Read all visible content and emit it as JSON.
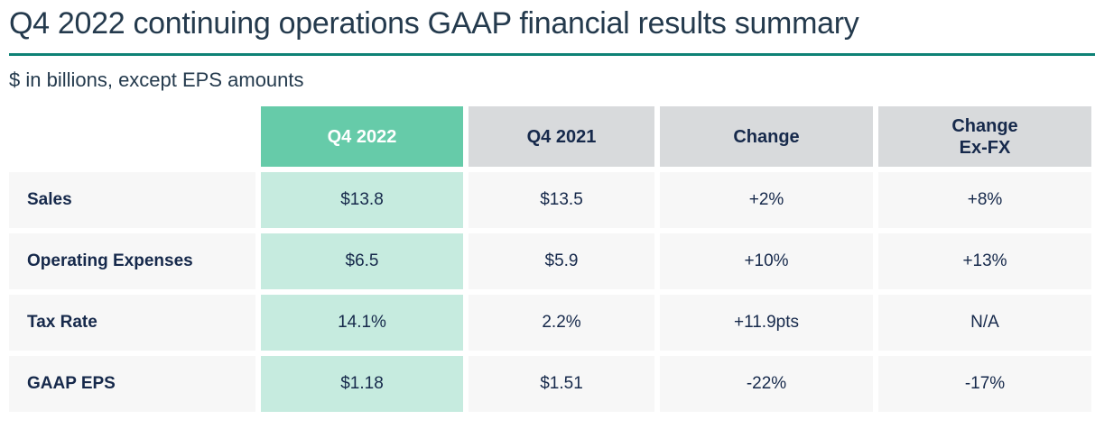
{
  "header": {
    "title": "Q4 2022 continuing operations GAAP financial results summary",
    "note": "$ in billions, except EPS amounts"
  },
  "chart_data": {
    "type": "table",
    "title": "Q4 2022 continuing operations GAAP financial results summary",
    "subtitle": "$ in billions, except EPS amounts",
    "columns": [
      "",
      "Q4 2022",
      "Q4 2021",
      "Change",
      "Change Ex-FX"
    ],
    "rows": [
      [
        "Sales",
        "$13.8",
        "$13.5",
        "+2%",
        "+8%"
      ],
      [
        "Operating Expenses",
        "$6.5",
        "$5.9",
        "+10%",
        "+13%"
      ],
      [
        "Tax Rate",
        "14.1%",
        "2.2%",
        "+11.9pts",
        "N/A"
      ],
      [
        "GAAP EPS",
        "$1.18",
        "$1.51",
        "-22%",
        "-17%"
      ]
    ],
    "highlighted_column": "Q4 2022",
    "layout": {
      "grid": "off",
      "header_row": true,
      "label_column_bold": true
    }
  },
  "table": {
    "columns": [
      {
        "id": "metric",
        "label": ""
      },
      {
        "id": "q4-2022",
        "label": "Q4 2022",
        "highlight": true
      },
      {
        "id": "q4-2021",
        "label": "Q4 2021"
      },
      {
        "id": "change",
        "label": "Change"
      },
      {
        "id": "change-ex-fx",
        "label": "Change\nEx-FX"
      }
    ],
    "rows": [
      {
        "label": "Sales",
        "values": [
          "$13.8",
          "$13.5",
          "+2%",
          "+8%"
        ]
      },
      {
        "label": "Operating Expenses",
        "values": [
          "$6.5",
          "$5.9",
          "+10%",
          "+13%"
        ]
      },
      {
        "label": "Tax Rate",
        "values": [
          "14.1%",
          "2.2%",
          "+11.9pts",
          "N/A"
        ]
      },
      {
        "label": "GAAP EPS",
        "values": [
          "$1.18",
          "$1.51",
          "-22%",
          "-17%"
        ]
      }
    ]
  },
  "colors": {
    "accent_teal": "#0E8276",
    "highlight_header": "#66CBA9",
    "highlight_cell": "#C6EBDF",
    "header_gray": "#D8DADC",
    "row_gray": "#F7F7F7",
    "text_navy": "#16294B",
    "title_slate": "#243A4D"
  }
}
